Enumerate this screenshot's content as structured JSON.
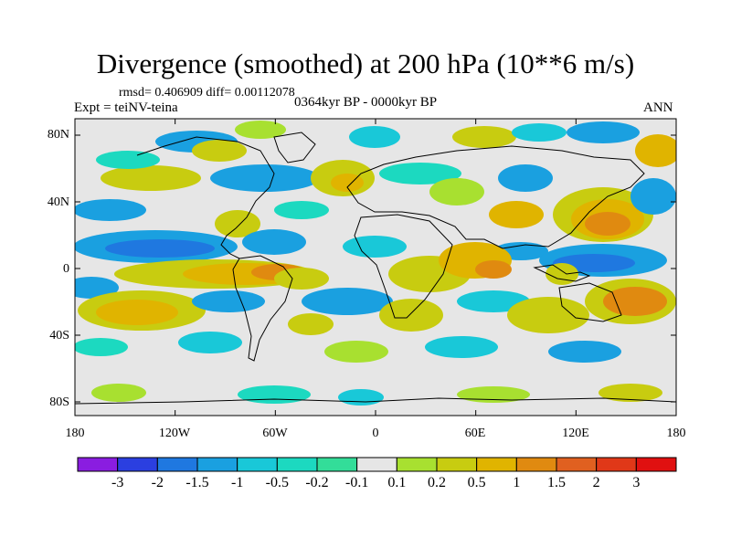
{
  "title": "Divergence (smoothed) at 200 hPa (10**6 m/s)",
  "stats": "rmsd= 0.406909 diff= 0.00112078",
  "experiment": "Expt = teiNV-teina",
  "period": "0364kyr BP - 0000kyr BP",
  "season": "ANN",
  "map": {
    "lat_labels": [
      "80N",
      "40N",
      "0",
      "40S",
      "80S"
    ],
    "lon_labels": [
      "180",
      "120W",
      "60W",
      "0",
      "60E",
      "120E",
      "180"
    ],
    "background_color": "#e6e6e6"
  },
  "colorbar": {
    "labels": [
      "-3",
      "-2",
      "-1.5",
      "-1",
      "-0.5",
      "-0.2",
      "-0.1",
      "0.1",
      "0.2",
      "0.5",
      "1",
      "1.5",
      "2",
      "3"
    ],
    "colors": [
      "#8a1de0",
      "#2b3fe0",
      "#1f78e0",
      "#1aa0e0",
      "#19c8d8",
      "#1cd9c0",
      "#33dd99",
      "#e6e6e6",
      "#a8e030",
      "#c8cc10",
      "#e0b400",
      "#e08a10",
      "#e06020",
      "#e03818",
      "#e01010"
    ]
  },
  "chart_data": {
    "type": "heatmap",
    "title": "Divergence (smoothed) at 200 hPa (10**6 m/s)",
    "projection": "cylindrical equidistant",
    "lon_range": [
      -180,
      180
    ],
    "lat_range": [
      -90,
      90
    ],
    "contour_levels": [
      -3,
      -2,
      -1.5,
      -1,
      -0.5,
      -0.2,
      -0.1,
      0.1,
      0.2,
      0.5,
      1,
      1.5,
      2,
      3
    ],
    "rmsd": 0.406909,
    "diff": 0.00112078
  }
}
